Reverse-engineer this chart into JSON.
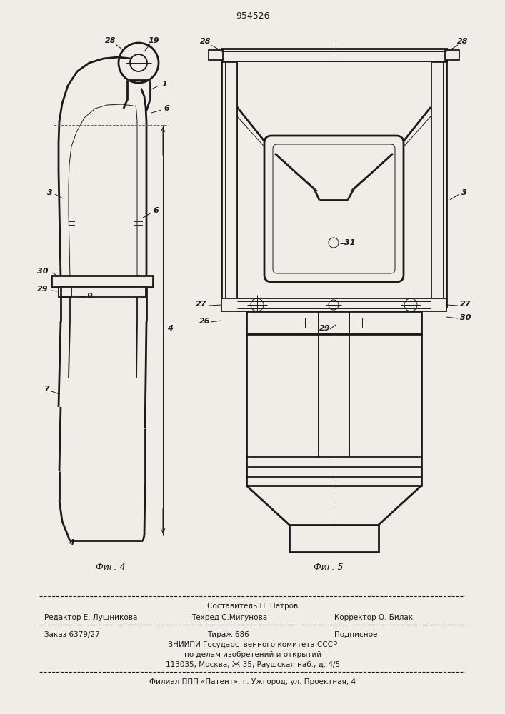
{
  "patent_number": "954526",
  "fig4_label": "Фиг. 4",
  "fig5_label": "Фиг. 5",
  "footer_line1_center": "Составитель Н. Петров",
  "footer_line2_left": "Редактор Е. Лушникова",
  "footer_line2_center": "Техред С.Мигунова",
  "footer_line2_right": "Корректор О. Билак",
  "footer_line3_left": "Заказ 6379/27",
  "footer_line3_center": "Тираж 686",
  "footer_line3_right": "Подписное",
  "footer_line4": "ВНИИПИ Государственного комитета СССР",
  "footer_line5": "по делам изобретений и открытий",
  "footer_line6": "113035, Москва, Ж-35, Раушская наб., д. 4/5",
  "footer_line7": "Филиал ППП «Патент», г. Ужгород, ул. Проектная, 4",
  "bg_color": "#f0ede8",
  "line_color": "#1a1a1a"
}
